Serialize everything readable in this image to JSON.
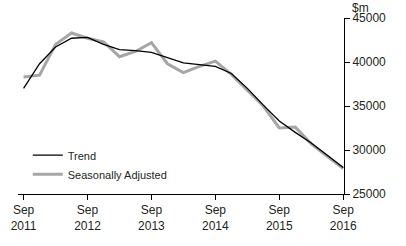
{
  "chart_data": {
    "type": "line",
    "ylabel": "$m",
    "categories": [
      "Sep 2011",
      null,
      null,
      null,
      "Sep 2012",
      null,
      null,
      null,
      "Sep 2013",
      null,
      null,
      null,
      "Sep 2014",
      null,
      null,
      null,
      "Sep 2015",
      null,
      null,
      null,
      "Sep 2016"
    ],
    "series": [
      {
        "name": "Trend",
        "color": "#000000",
        "values": [
          37000,
          39800,
          41700,
          42700,
          42800,
          42000,
          41400,
          41300,
          41100,
          40500,
          39900,
          39700,
          39500,
          38700,
          37000,
          35100,
          33300,
          32000,
          30800,
          29400,
          28000
        ]
      },
      {
        "name": "Seasonally Adjusted",
        "color": "#a6a6a6",
        "values": [
          38300,
          38500,
          42000,
          43300,
          42700,
          42300,
          40600,
          41200,
          42200,
          39800,
          38800,
          39500,
          40100,
          38600,
          36800,
          35000,
          32500,
          32600,
          30700,
          29300,
          27900
        ]
      }
    ],
    "ylim": [
      25000,
      45000
    ],
    "yticks": [
      25000,
      30000,
      35000,
      40000,
      45000
    ],
    "grid": false,
    "legend": "bottom left"
  }
}
